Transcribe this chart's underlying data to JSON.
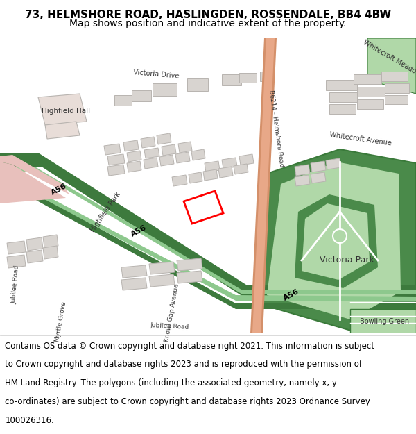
{
  "title_line1": "73, HELMSHORE ROAD, HASLINGDEN, ROSSENDALE, BB4 4BW",
  "title_line2": "Map shows position and indicative extent of the property.",
  "footer_text": "Contains OS data © Crown copyright and database right 2021. This information is subject to Crown copyright and database rights 2023 and is reproduced with the permission of HM Land Registry. The polygons (including the associated geometry, namely x, y co-ordinates) are subject to Crown copyright and database rights 2023 Ordnance Survey 100026316.",
  "bg_color": "#f5f3ef",
  "map_bg": "#f0ede8",
  "header_bg": "#ffffff",
  "footer_bg": "#ffffff",
  "title_fontsize": 11,
  "subtitle_fontsize": 10,
  "footer_fontsize": 8.5,
  "dark_green": "#3d7a3d",
  "light_green": "#8dc88d",
  "road_pink": "#e8b0b0",
  "road_salmon": "#d4906a",
  "bld_gray": "#d8d4d0",
  "bld_outline": "#b8b4b0",
  "park_dk": "#4a8a4a",
  "park_lt": "#b0d8a8",
  "park_outline": "#3a7a3a",
  "pink_road": "#e8c0bc"
}
